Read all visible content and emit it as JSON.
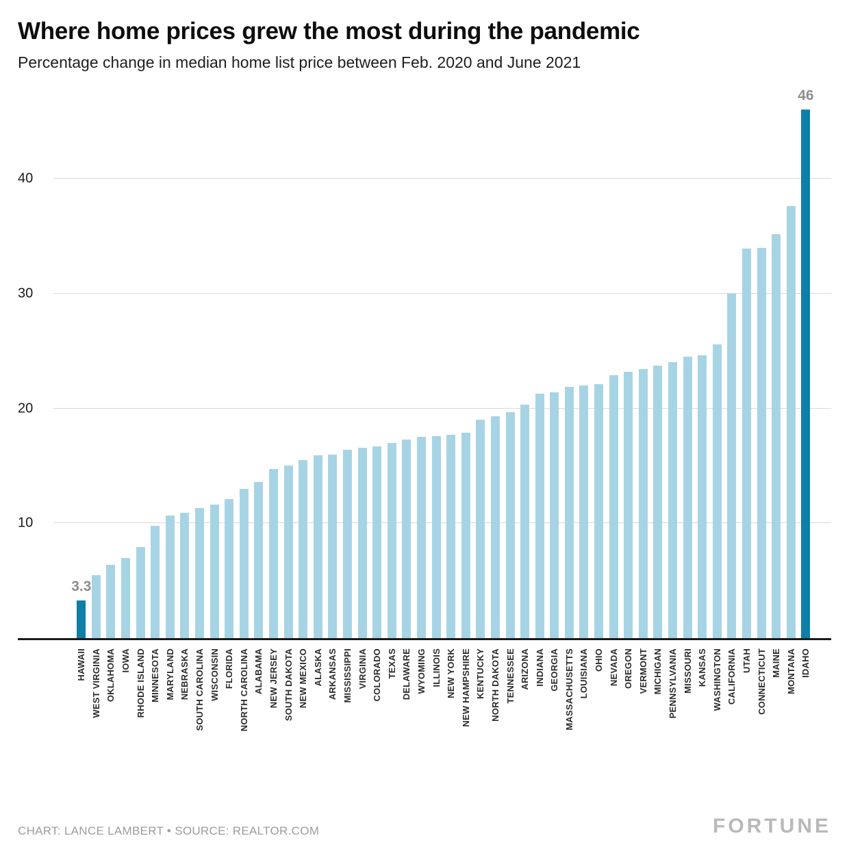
{
  "header": {
    "title": "Where home prices grew the most during the pandemic",
    "subtitle": "Percentage change in median home list price between Feb. 2020 and June 2021"
  },
  "footer": {
    "credit": "CHART: LANCE LAMBERT • SOURCE: REALTOR.COM",
    "brand": "FORTUNE"
  },
  "chart_data": {
    "type": "bar",
    "title": "Where home prices grew the most during the pandemic",
    "subtitle": "Percentage change in median home list price between Feb. 2020 and June 2021",
    "xlabel": "",
    "ylabel": "",
    "ylim": [
      0,
      46.2
    ],
    "yticks": [
      10,
      20,
      30,
      40
    ],
    "grid": true,
    "legend": false,
    "bar_color": "#a7d4e4",
    "highlight_color": "#0e7fa6",
    "highlight_indices": [
      0,
      49
    ],
    "value_labels": {
      "0": "3.3",
      "49": "46"
    },
    "categories": [
      "HAWAII",
      "WEST VIRGINIA",
      "OKLAHOMA",
      "IOWA",
      "RHODE ISLAND",
      "MINNESOTA",
      "MARYLAND",
      "NEBRASKA",
      "SOUTH CAROLINA",
      "WISCONSIN",
      "FLORIDA",
      "NORTH CAROLINA",
      "ALABAMA",
      "NEW JERSEY",
      "SOUTH DAKOTA",
      "NEW MEXICO",
      "ALASKA",
      "ARKANSAS",
      "MISSISSIPPI",
      "VIRGINIA",
      "COLORADO",
      "TEXAS",
      "DELAWARE",
      "WYOMING",
      "ILLINOIS",
      "NEW YORK",
      "NEW HAMPSHIRE",
      "KENTUCKY",
      "NORTH DAKOTA",
      "TENNESSEE",
      "ARIZONA",
      "INDIANA",
      "GEORGIA",
      "MASSACHUSETTS",
      "LOUISIANA",
      "OHIO",
      "NEVADA",
      "OREGON",
      "VERMONT",
      "MICHIGAN",
      "PENNSYLVANIA",
      "MISSOURI",
      "KANSAS",
      "WASHINGTON",
      "CALIFORNIA",
      "UTAH",
      "CONNECTICUT",
      "MAINE",
      "MONTANA",
      "IDAHO"
    ],
    "values": [
      3.3,
      5.5,
      6.4,
      7.0,
      7.9,
      9.8,
      10.7,
      10.9,
      11.3,
      11.6,
      12.1,
      13.0,
      13.6,
      14.7,
      15.0,
      15.5,
      15.9,
      16.0,
      16.4,
      16.6,
      16.7,
      17.0,
      17.3,
      17.5,
      17.6,
      17.7,
      17.9,
      19.0,
      19.3,
      19.7,
      20.3,
      21.3,
      21.4,
      21.9,
      22.0,
      22.1,
      22.9,
      23.2,
      23.4,
      23.7,
      24.0,
      24.5,
      24.6,
      25.6,
      30.0,
      33.9,
      34.0,
      35.2,
      37.6,
      46
    ]
  }
}
